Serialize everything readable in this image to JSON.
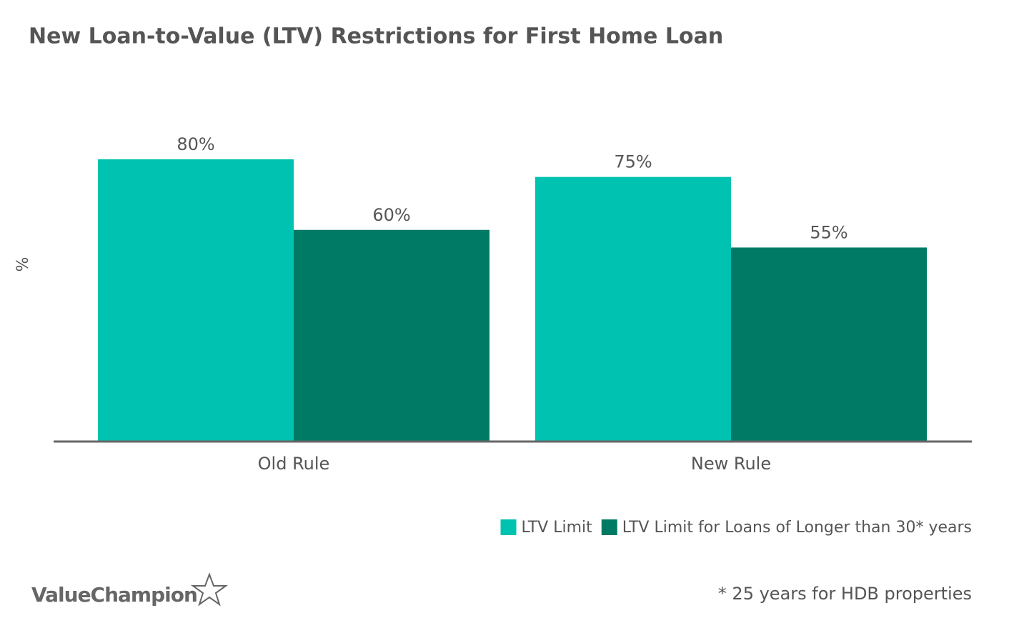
{
  "chart_data": {
    "type": "bar",
    "title": "New Loan-to-Value (LTV) Restrictions for First Home Loan",
    "y_label": "%",
    "categories": [
      "Old Rule",
      "New Rule"
    ],
    "series": [
      {
        "name": "LTV Limit",
        "color": "#00c2b0",
        "values": [
          80,
          75
        ],
        "value_labels": [
          "80%",
          "75%"
        ]
      },
      {
        "name": "LTV Limit for Loans of Longer than 30* years",
        "color": "#007a65",
        "values": [
          60,
          55
        ],
        "value_labels": [
          "60%",
          "55%"
        ]
      }
    ],
    "ylim": [
      0,
      100
    ],
    "legend": "bottom-right",
    "footnote": "* 25 years for HDB properties",
    "logo": "ValueChampion"
  }
}
